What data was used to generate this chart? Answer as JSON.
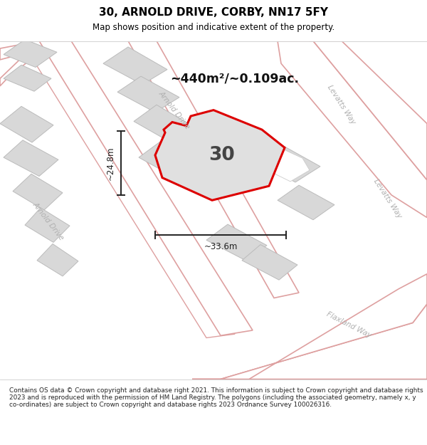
{
  "title": "30, ARNOLD DRIVE, CORBY, NN17 5FY",
  "subtitle": "Map shows position and indicative extent of the property.",
  "footer": "Contains OS data © Crown copyright and database right 2021. This information is subject to Crown copyright and database rights 2023 and is reproduced with the permission of HM Land Registry. The polygons (including the associated geometry, namely x, y co-ordinates) are subject to Crown copyright and database rights 2023 Ordnance Survey 100026316.",
  "area_label": "~440m²/~0.109ac.",
  "number_label": "30",
  "dim_width": "~33.6m",
  "dim_height": "~24.8m",
  "road_color": "#ffffff",
  "road_border": "#dea0a0",
  "building_fill": "#d8d8d8",
  "building_border": "#bbbbbb",
  "plot_color": "#dd0000",
  "plot_fill": "#e0e0e0",
  "street_label_color": "#b0b0b0",
  "dim_color": "#222222",
  "title_color": "#000000",
  "footer_color": "#222222",
  "bg_color": "#ffffff"
}
